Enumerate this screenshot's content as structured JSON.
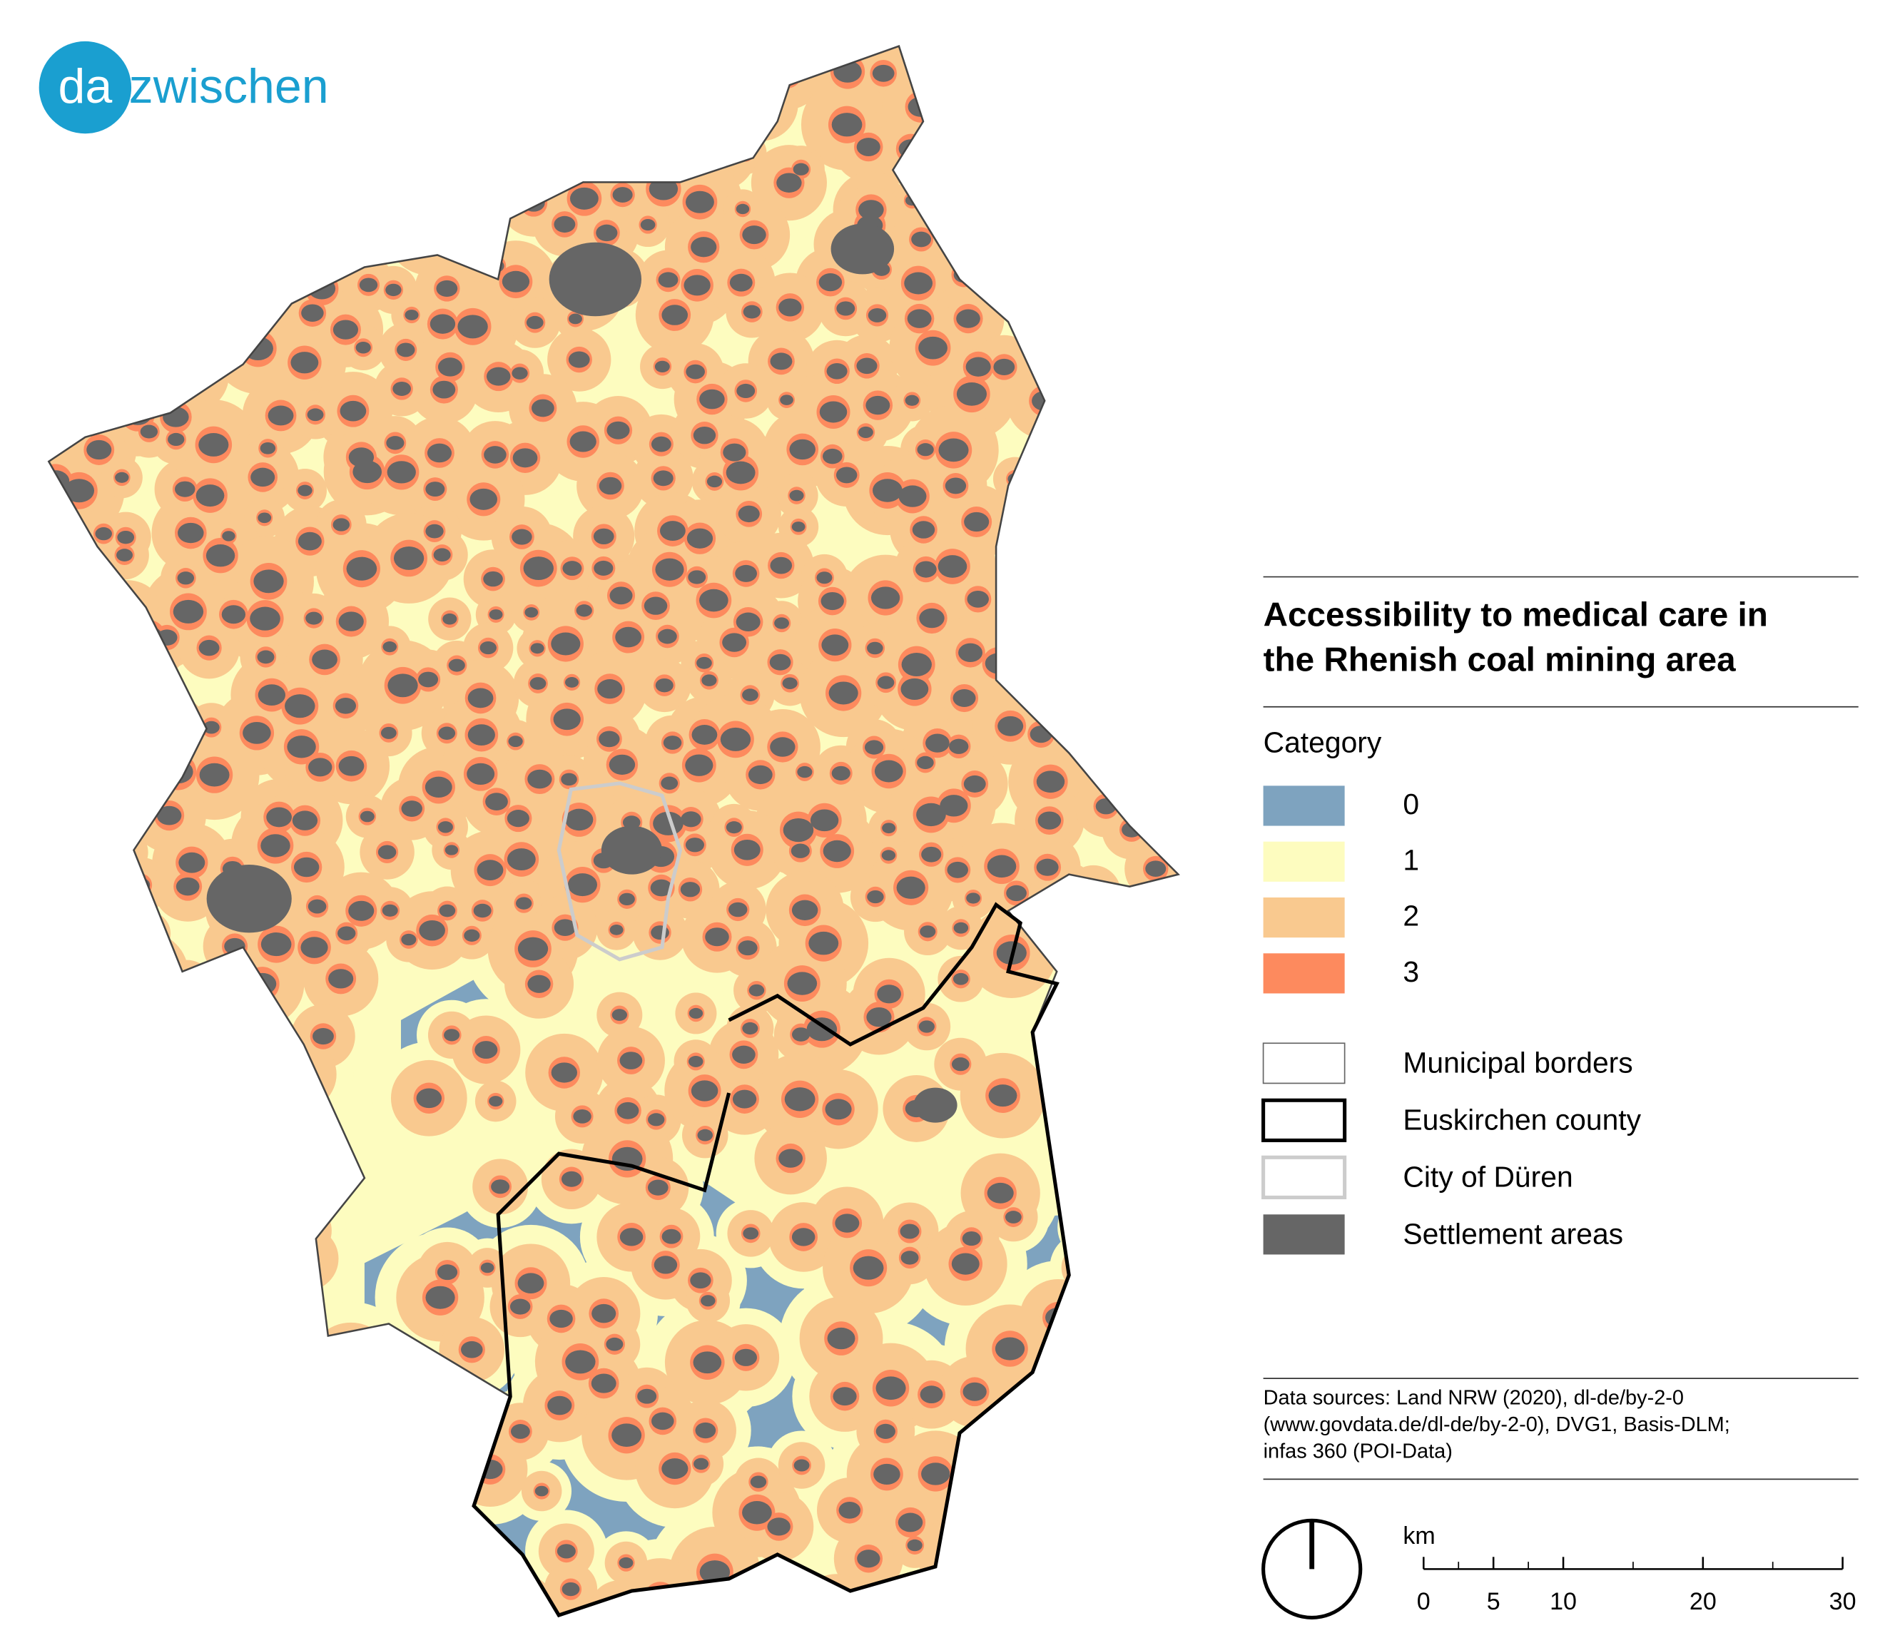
{
  "logo": {
    "prefix": "da",
    "suffix": "zwischen"
  },
  "legend": {
    "title_lines": [
      "Accessibility to medical care in",
      "the Rhenish coal mining area"
    ],
    "category_heading": "Category",
    "categories": [
      {
        "label": "0",
        "color": "#7ea3bf"
      },
      {
        "label": "1",
        "color": "#fdfcbf"
      },
      {
        "label": "2",
        "color": "#f9c98f"
      },
      {
        "label": "3",
        "color": "#fd8a5e"
      }
    ],
    "layers": [
      "Municipal borders",
      "Euskirchen county",
      "City of Düren",
      "Settlement areas"
    ]
  },
  "sources": [
    "Data sources: Land NRW (2020), dl-de/by-2-0",
    "(www.govdata.de/dl-de/by-2-0), DVG1, Basis-DLM;",
    "infas 360 (POI-Data)"
  ],
  "scale_bar": {
    "unit": "km",
    "range": [
      0,
      30
    ],
    "ticks": [
      0,
      5,
      10,
      20,
      30
    ]
  }
}
